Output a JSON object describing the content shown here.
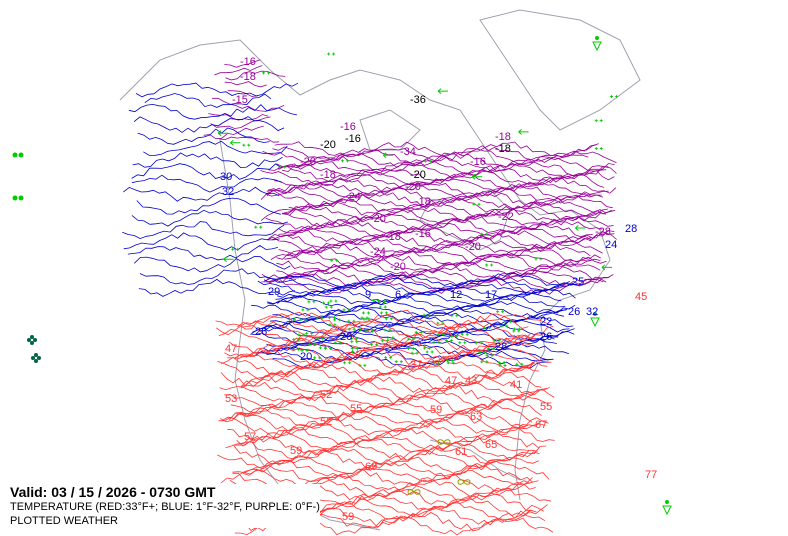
{
  "valid": "Valid: 03 / 15 / 2026  -  0730 GMT",
  "legend_temperature": "TEMPERATURE (RED:33°F+; BLUE: 1°F-32°F, PURPLE: 0°F-)",
  "legend_weather": "PLOTTED WEATHER",
  "colors": {
    "warm": "#ff3333",
    "cool": "#0000cc",
    "cold": "#990099",
    "weather": "#00cc00",
    "coast": "#a0a0b0",
    "plotted_dark": "#006644",
    "text": "#000000"
  },
  "temperature_labels": {
    "cold": [
      "-16",
      "-18",
      "-15",
      "-16",
      "-20",
      "-18",
      "-24",
      "-20",
      "-18",
      "-16",
      "-22",
      "-20",
      "-18",
      "-16",
      "-28",
      "-34",
      "-18",
      "-20",
      "-20",
      "-24"
    ],
    "cool": [
      "30",
      "32",
      "29",
      "26",
      "20",
      "9",
      "6",
      "12",
      "17",
      "22",
      "25",
      "26",
      "28",
      "24",
      "28",
      "32",
      "20",
      "26"
    ],
    "warm": [
      "47",
      "53",
      "57",
      "52",
      "55",
      "59",
      "63",
      "65",
      "67",
      "61",
      "59",
      "55",
      "43",
      "41",
      "47",
      "52",
      "69",
      "59",
      "77",
      "45",
      "37"
    ],
    "dark": [
      "-16",
      "-20",
      "-36",
      "-20",
      "-18"
    ]
  },
  "icons": [
    "snow-icon",
    "rain-icon",
    "fog-icon",
    "thunderstorm-icon",
    "shower-icon"
  ]
}
